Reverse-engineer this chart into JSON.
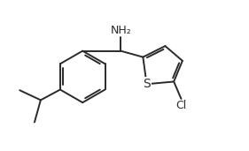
{
  "background": "#ffffff",
  "line_color": "#2a2a2a",
  "line_width": 1.4,
  "font_size_labels": 9,
  "NH2_label": "NH₂",
  "Cl_label": "Cl",
  "S_label": "S",
  "xlim": [
    0,
    10
  ],
  "ylim": [
    0,
    6
  ]
}
